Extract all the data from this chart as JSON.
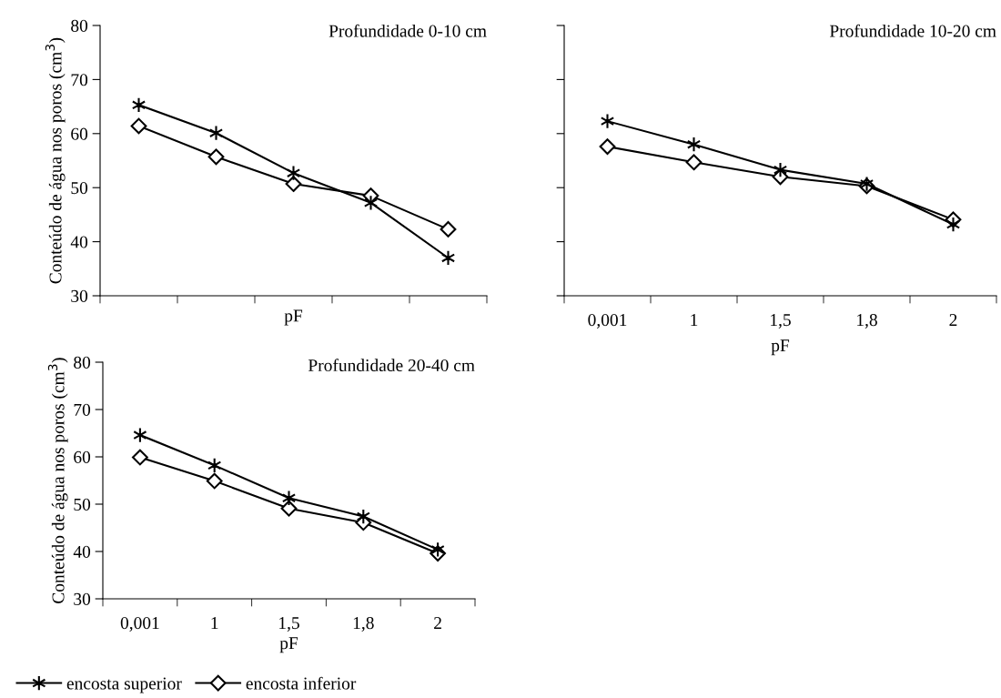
{
  "chart_data": [
    {
      "type": "line",
      "title": "Profundidade 0-10 cm",
      "xlabel": "pF",
      "ylabel": "Conteúdo de água nos poros (cm$^{3}$)",
      "categories": [
        null,
        null,
        null,
        null,
        null
      ],
      "ylim": [
        30,
        80
      ],
      "yticks": [
        30,
        40,
        50,
        60,
        70,
        80
      ],
      "tick_labels": "y",
      "grid": false,
      "legend": false,
      "series": [
        {
          "color": "#000000",
          "marker": "cross",
          "values": [
            65.3,
            60.1,
            52.7,
            47.2,
            37.0
          ]
        },
        {
          "color": "#000000",
          "marker": "diamond",
          "values": [
            61.4,
            55.7,
            50.7,
            48.5,
            42.3
          ]
        }
      ]
    },
    {
      "type": "line",
      "title": "Profundidade 10-20 cm",
      "xlabel": "pF",
      "categories": [
        "0,001",
        "1",
        "1,5",
        "1,8",
        "2"
      ],
      "ylim": [
        30,
        80
      ],
      "yticks": [
        30,
        40,
        50,
        60,
        70,
        80
      ],
      "tick_labels": "x",
      "grid": false,
      "legend": false,
      "series": [
        {
          "color": "#000000",
          "marker": "cross",
          "values": [
            62.3,
            58.0,
            53.3,
            50.7,
            43.2
          ]
        },
        {
          "color": "#000000",
          "marker": "diamond",
          "values": [
            57.6,
            54.7,
            52.0,
            50.3,
            44.1
          ]
        }
      ]
    },
    {
      "type": "line",
      "title": "Profundidade 20-40 cm",
      "xlabel": "pF",
      "ylabel": "Conteúdo de água nos poros (cm$^{3}$)",
      "categories": [
        "0,001",
        "1",
        "1,5",
        "1,8",
        "2"
      ],
      "ylim": [
        30,
        80
      ],
      "yticks": [
        30,
        40,
        50,
        60,
        70,
        80
      ],
      "grid": false,
      "legend": "bottom",
      "series": [
        {
          "name": "encosta superior",
          "color": "#000000",
          "marker": "cross",
          "values": [
            64.6,
            58.2,
            51.3,
            47.4,
            40.4
          ]
        },
        {
          "name": "encosta inferior",
          "color": "#000000",
          "marker": "diamond",
          "values": [
            59.9,
            54.9,
            49.1,
            46.1,
            39.6
          ]
        }
      ]
    }
  ]
}
